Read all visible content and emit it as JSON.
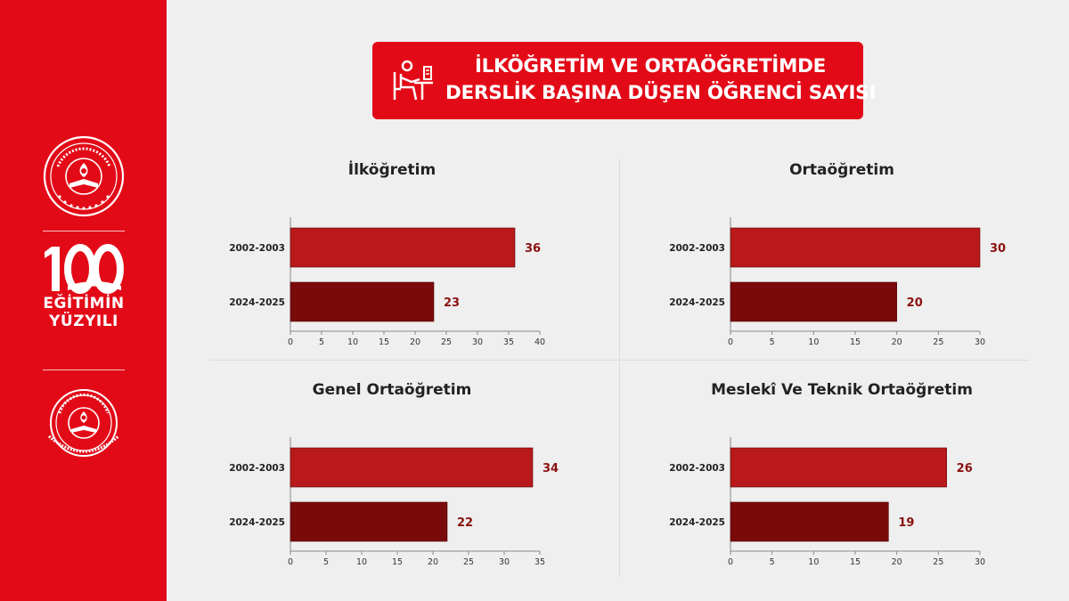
{
  "header": {
    "title_line1": "İLKÖĞRETİM VE ORTAÖĞRETİMDE",
    "title_line2": "DERSLİK BAŞINA DÜŞEN ÖĞRENCİ SAYISI",
    "icon": "student-desk-icon"
  },
  "sidebar": {
    "emblem_top_icon": "ministry-of-education-emblem",
    "emblem_top_text": "T.C. MİLLÎ EĞİTİM BAKANLIĞI",
    "logo_number": "100",
    "logo_line1": "EĞİTİMİN",
    "logo_line2": "YÜZYILI",
    "emblem_bottom_icon": "ministry-of-education-emblem",
    "emblem_bottom_text": "STRATEJİ GELİŞTİRME BAŞKANLIĞI"
  },
  "colors": {
    "brand_red": "#e30a17",
    "bar_2002": "#b9191b",
    "bar_2024": "#7a0a0a",
    "value_label": "#8b1010",
    "background": "#efefef"
  },
  "chart_data": [
    {
      "type": "bar",
      "orientation": "horizontal",
      "title": "İlköğretim",
      "categories": [
        "2002-2003",
        "2024-2025"
      ],
      "values": [
        36,
        23
      ],
      "xlim": [
        0,
        40
      ],
      "xticks": [
        0,
        5,
        10,
        15,
        20,
        25,
        30,
        35,
        40
      ],
      "grid": false
    },
    {
      "type": "bar",
      "orientation": "horizontal",
      "title": "Ortaöğretim",
      "categories": [
        "2002-2003",
        "2024-2025"
      ],
      "values": [
        30,
        20
      ],
      "xlim": [
        0,
        30
      ],
      "xticks": [
        0,
        5,
        10,
        15,
        20,
        25,
        30
      ],
      "grid": false
    },
    {
      "type": "bar",
      "orientation": "horizontal",
      "title": "Genel Ortaöğretim",
      "categories": [
        "2002-2003",
        "2024-2025"
      ],
      "values": [
        34,
        22
      ],
      "xlim": [
        0,
        35
      ],
      "xticks": [
        0,
        5,
        10,
        15,
        20,
        25,
        30,
        35
      ],
      "grid": false
    },
    {
      "type": "bar",
      "orientation": "horizontal",
      "title": "Meslekî Ve Teknik Ortaöğretim",
      "categories": [
        "2002-2003",
        "2024-2025"
      ],
      "values": [
        26,
        19
      ],
      "xlim": [
        0,
        30
      ],
      "xticks": [
        0,
        5,
        10,
        15,
        20,
        25,
        30
      ],
      "grid": false
    }
  ]
}
